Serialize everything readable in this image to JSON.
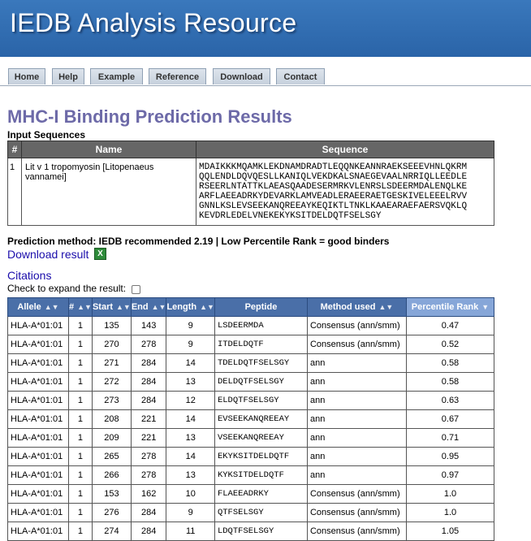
{
  "banner": {
    "title": "IEDB Analysis Resource"
  },
  "nav": {
    "tabs": [
      {
        "label": "Home"
      },
      {
        "label": "Help"
      },
      {
        "label": "Example"
      },
      {
        "label": "Reference"
      },
      {
        "label": "Download"
      },
      {
        "label": "Contact"
      }
    ]
  },
  "page": {
    "title": "MHC-I Binding Prediction Results",
    "input_label": "Input Sequences"
  },
  "input_table": {
    "headers": [
      "#",
      "Name",
      "Sequence"
    ],
    "rows": [
      {
        "num": "1",
        "name": "Lit v 1 tropomyosin [Litopenaeus vannamei]",
        "sequence_lines": [
          "MDAIKKKMQAMKLEKDNAMDRADTLEQQNKEANNRAEKSEEEVHNLQKRM",
          "QQLENDLDQVQESLLKANIQLVEKDKALSNAEGEVAALNRRIQLLEEDLE",
          "RSEERLNTATTKLAEASQAADESERMRKVLENRSLSDEERMDALENQLKE",
          "ARFLAEEADRKYDEVARKLAMVEADLERAEERAETGESKIVELEEELRVV",
          "GNNLKSLEVSEEKANQREEAYKEQIKTLTNKLKAAEARAEFAERSVQKLQ",
          "KEVDRLEDELVNEKEKYKSITDELDQTFSELSGY"
        ]
      }
    ]
  },
  "prediction": {
    "method_text": "Prediction method: IEDB recommended 2.19 | Low Percentile Rank = good binders",
    "download_label": "Download result",
    "citations_label": "Citations",
    "expand_label": "Check to expand the result:"
  },
  "results": {
    "headers": [
      "Allele",
      "#",
      "Start",
      "End",
      "Length",
      "Peptide",
      "Method used",
      "Percentile Rank"
    ],
    "rows": [
      [
        "HLA-A*01:01",
        "1",
        "135",
        "143",
        "9",
        "LSDEERMDA",
        "Consensus (ann/smm)",
        "0.47"
      ],
      [
        "HLA-A*01:01",
        "1",
        "270",
        "278",
        "9",
        "ITDELDQTF",
        "Consensus (ann/smm)",
        "0.52"
      ],
      [
        "HLA-A*01:01",
        "1",
        "271",
        "284",
        "14",
        "TDELDQTFSELSGY",
        "ann",
        "0.58"
      ],
      [
        "HLA-A*01:01",
        "1",
        "272",
        "284",
        "13",
        "DELDQTFSELSGY",
        "ann",
        "0.58"
      ],
      [
        "HLA-A*01:01",
        "1",
        "273",
        "284",
        "12",
        "ELDQTFSELSGY",
        "ann",
        "0.63"
      ],
      [
        "HLA-A*01:01",
        "1",
        "208",
        "221",
        "14",
        "EVSEEKANQREEAY",
        "ann",
        "0.67"
      ],
      [
        "HLA-A*01:01",
        "1",
        "209",
        "221",
        "13",
        "VSEEKANQREEAY",
        "ann",
        "0.71"
      ],
      [
        "HLA-A*01:01",
        "1",
        "265",
        "278",
        "14",
        "EKYKSITDELDQTF",
        "ann",
        "0.95"
      ],
      [
        "HLA-A*01:01",
        "1",
        "266",
        "278",
        "13",
        "KYKSITDELDQTF",
        "ann",
        "0.97"
      ],
      [
        "HLA-A*01:01",
        "1",
        "153",
        "162",
        "10",
        "FLAEEADRKY",
        "Consensus (ann/smm)",
        "1.0"
      ],
      [
        "HLA-A*01:01",
        "1",
        "276",
        "284",
        "9",
        "QTFSELSGY",
        "Consensus (ann/smm)",
        "1.0"
      ],
      [
        "HLA-A*01:01",
        "1",
        "274",
        "284",
        "11",
        "LDQTFSELSGY",
        "Consensus (ann/smm)",
        "1.05"
      ]
    ]
  },
  "colors": {
    "banner": "#2f6cb0",
    "title": "#6d6aa8",
    "header_bg": "#4a6fa8",
    "active_header_bg": "#86a6d8",
    "link": "#1a0dab"
  }
}
